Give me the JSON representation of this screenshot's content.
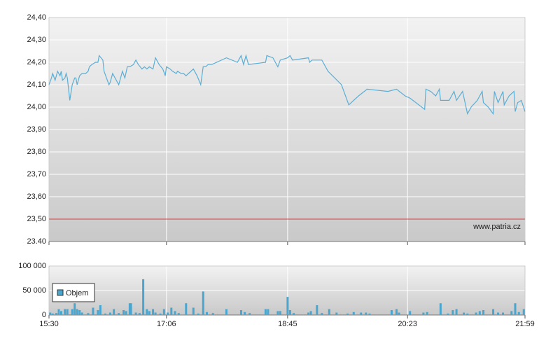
{
  "chart_data": [
    {
      "type": "line",
      "color": "#5aaed6",
      "xlim": [
        "15:30",
        "21:59"
      ],
      "ylim": [
        23.4,
        24.4
      ],
      "yticks": [
        {
          "value": 24.4,
          "label": "24,40"
        },
        {
          "value": 24.3,
          "label": "24,30"
        },
        {
          "value": 24.2,
          "label": "24,20"
        },
        {
          "value": 24.1,
          "label": "24,10"
        },
        {
          "value": 24.0,
          "label": "24,00"
        },
        {
          "value": 23.9,
          "label": "23,90"
        },
        {
          "value": 23.8,
          "label": "23,80"
        },
        {
          "value": 23.7,
          "label": "23,70"
        },
        {
          "value": 23.6,
          "label": "23,60"
        },
        {
          "value": 23.5,
          "label": "23,50"
        },
        {
          "value": 23.4,
          "label": "23.40"
        }
      ],
      "grid": true,
      "reference_line": {
        "value": 23.5,
        "color": "#d04040"
      },
      "source": "www.patria.cz",
      "x": [
        "15:30",
        "15:32",
        "15:33",
        "15:35",
        "15:37",
        "15:39",
        "15:40",
        "15:41",
        "15:43",
        "15:44",
        "15:45",
        "15:47",
        "15:49",
        "15:51",
        "15:52",
        "15:53",
        "15:55",
        "15:57",
        "16:00",
        "16:02",
        "16:03",
        "16:05",
        "16:08",
        "16:10",
        "16:11",
        "16:14",
        "16:15",
        "16:17",
        "16:19",
        "16:20",
        "16:22",
        "16:24",
        "16:27",
        "16:28",
        "16:30",
        "16:32",
        "16:34",
        "16:36",
        "16:39",
        "16:41",
        "16:43",
        "16:46",
        "16:48",
        "16:50",
        "16:52",
        "16:55",
        "16:57",
        "17:00",
        "17:03",
        "17:05",
        "17:06",
        "17:09",
        "17:11",
        "17:14",
        "17:15",
        "17:18",
        "17:20",
        "17:22",
        "17:24",
        "17:28",
        "17:31",
        "17:34",
        "17:36",
        "17:38",
        "17:40",
        "17:43",
        "17:55",
        "18:04",
        "18:07",
        "18:09",
        "18:11",
        "18:13",
        "18:27",
        "18:28",
        "18:33",
        "18:37",
        "18:39",
        "18:45",
        "18:47",
        "18:49",
        "19:02",
        "19:03",
        "19:05",
        "19:13",
        "19:18",
        "19:29",
        "19:35",
        "19:43",
        "19:50",
        "20:07",
        "20:14",
        "20:21",
        "20:25",
        "20:37",
        "20:38",
        "20:42",
        "20:46",
        "20:49",
        "20:50",
        "20:57",
        "21:01",
        "21:03",
        "21:08",
        "21:12",
        "21:15",
        "21:20",
        "21:24",
        "21:25",
        "21:29",
        "21:33",
        "21:34",
        "21:37",
        "21:41",
        "21:42",
        "21:46",
        "21:50",
        "21:51",
        "21:53",
        "21:56",
        "21:59"
      ],
      "values": [
        24.1,
        24.13,
        24.15,
        24.12,
        24.16,
        24.14,
        24.16,
        24.12,
        24.13,
        24.15,
        24.13,
        24.03,
        24.1,
        24.13,
        24.13,
        24.1,
        24.14,
        24.15,
        24.15,
        24.16,
        24.18,
        24.19,
        24.2,
        24.2,
        24.23,
        24.21,
        24.16,
        24.13,
        24.1,
        24.11,
        24.15,
        24.13,
        24.1,
        24.12,
        24.16,
        24.13,
        24.18,
        24.18,
        24.19,
        24.21,
        24.19,
        24.17,
        24.18,
        24.17,
        24.18,
        24.17,
        24.22,
        24.19,
        24.17,
        24.14,
        24.18,
        24.17,
        24.16,
        24.15,
        24.16,
        24.15,
        24.15,
        24.14,
        24.15,
        24.17,
        24.14,
        24.1,
        24.18,
        24.18,
        24.19,
        24.19,
        24.22,
        24.2,
        24.23,
        24.19,
        24.23,
        24.19,
        24.2,
        24.23,
        24.22,
        24.18,
        24.21,
        24.22,
        24.23,
        24.21,
        24.22,
        24.2,
        24.21,
        24.21,
        24.16,
        24.1,
        24.01,
        24.05,
        24.08,
        24.07,
        24.08,
        24.05,
        24.04,
        23.99,
        24.08,
        24.07,
        24.05,
        24.08,
        24.03,
        24.03,
        24.07,
        24.03,
        24.07,
        23.97,
        24.0,
        24.03,
        24.07,
        24.02,
        24.0,
        23.97,
        24.07,
        24.02,
        24.07,
        24.01,
        24.05,
        24.07,
        23.98,
        24.02,
        24.03,
        23.98
      ]
    },
    {
      "type": "bar",
      "xlim": [
        "15:30",
        "21:59"
      ],
      "xticks": [
        "15:30",
        "17:06",
        "18:45",
        "20:23",
        "21:59"
      ],
      "ylim": [
        0,
        100000
      ],
      "yticks": [
        {
          "value": 100000,
          "label": "100 000"
        },
        {
          "value": 50000,
          "label": "50 000"
        },
        0
      ],
      "grid": true,
      "legend": "upper left",
      "series": [
        {
          "name": "Objem",
          "color": "#4aa6cf",
          "x": [
            "15:31",
            "15:33",
            "15:36",
            "15:38",
            "15:40",
            "15:43",
            "15:45",
            "15:49",
            "15:51",
            "15:53",
            "15:55",
            "15:57",
            "16:02",
            "16:06",
            "16:10",
            "16:12",
            "16:16",
            "16:20",
            "16:23",
            "16:27",
            "16:31",
            "16:33",
            "16:36",
            "16:37",
            "16:41",
            "16:44",
            "16:47",
            "16:50",
            "16:52",
            "16:55",
            "16:57",
            "17:01",
            "17:04",
            "17:07",
            "17:10",
            "17:13",
            "17:16",
            "17:22",
            "17:28",
            "17:32",
            "17:36",
            "17:39",
            "17:44",
            "17:55",
            "18:07",
            "18:10",
            "18:14",
            "18:27",
            "18:29",
            "18:37",
            "18:39",
            "18:45",
            "18:47",
            "18:50",
            "19:02",
            "19:04",
            "19:09",
            "19:13",
            "19:19",
            "19:25",
            "19:34",
            "19:39",
            "19:45",
            "19:49",
            "19:52",
            "20:10",
            "20:14",
            "20:16",
            "20:25",
            "20:36",
            "20:39",
            "20:50",
            "20:56",
            "21:00",
            "21:03",
            "21:09",
            "21:12",
            "21:19",
            "21:22",
            "21:25",
            "21:33",
            "21:37",
            "21:41",
            "21:48",
            "21:51",
            "21:54",
            "21:58"
          ],
          "values": [
            5000,
            3000,
            4000,
            12000,
            8000,
            12000,
            12000,
            12000,
            24000,
            12000,
            10000,
            5000,
            4000,
            15000,
            10000,
            20000,
            3000,
            5000,
            12000,
            4000,
            10000,
            8000,
            24000,
            24000,
            5000,
            4000,
            73000,
            12000,
            8000,
            12000,
            5000,
            3000,
            12000,
            5000,
            15000,
            8000,
            4000,
            24000,
            15000,
            3000,
            48000,
            6000,
            4000,
            12000,
            10000,
            6000,
            4000,
            12000,
            12000,
            8000,
            8000,
            37000,
            10000,
            4000,
            5000,
            8000,
            20000,
            4000,
            12000,
            5000,
            3000,
            6000,
            5000,
            5000,
            3000,
            10000,
            12000,
            5000,
            8000,
            5000,
            6000,
            24000,
            3000,
            10000,
            12000,
            5000,
            3000,
            5000,
            8000,
            10000,
            12000,
            5000,
            5000,
            8000,
            24000,
            6000,
            12000
          ]
        }
      ]
    }
  ]
}
